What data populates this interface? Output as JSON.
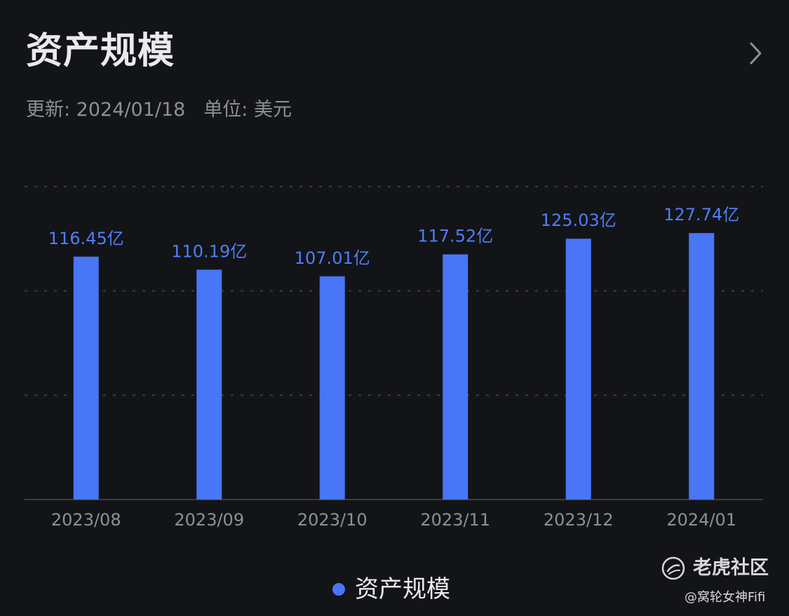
{
  "header": {
    "title": "资产规模",
    "updated": "更新: 2024/01/18",
    "unit": "单位: 美元"
  },
  "icons": {
    "more": "chevron-right-icon",
    "watermark_logo": "tiger-logo-icon"
  },
  "colors": {
    "background": "#131417",
    "bar": "#4876f6",
    "label": "#4f7ef7",
    "grid": "#3b3d43",
    "axis": "#3a3c42",
    "tick": "#8e9097"
  },
  "chart_data": {
    "type": "bar",
    "title": "资产规模",
    "xlabel": "",
    "ylabel": "",
    "categories": [
      "2023/08",
      "2023/09",
      "2023/10",
      "2023/11",
      "2023/12",
      "2024/01"
    ],
    "series": [
      {
        "name": "资产规模",
        "values": [
          116.45,
          110.19,
          107.01,
          117.52,
          125.03,
          127.74
        ],
        "labels": [
          "116.45亿",
          "110.19亿",
          "107.01亿",
          "117.52亿",
          "125.03亿",
          "127.74亿"
        ]
      }
    ],
    "unit_suffix": "亿",
    "ylim": [
      0,
      150
    ],
    "grid": true,
    "grid_style": "dashed-horizontal",
    "legend_position": "bottom-center",
    "data_labels": true
  },
  "legend": {
    "label": "资产规模"
  },
  "watermark": {
    "brand": "老虎社区",
    "user": "@窝轮女神Fifi"
  }
}
